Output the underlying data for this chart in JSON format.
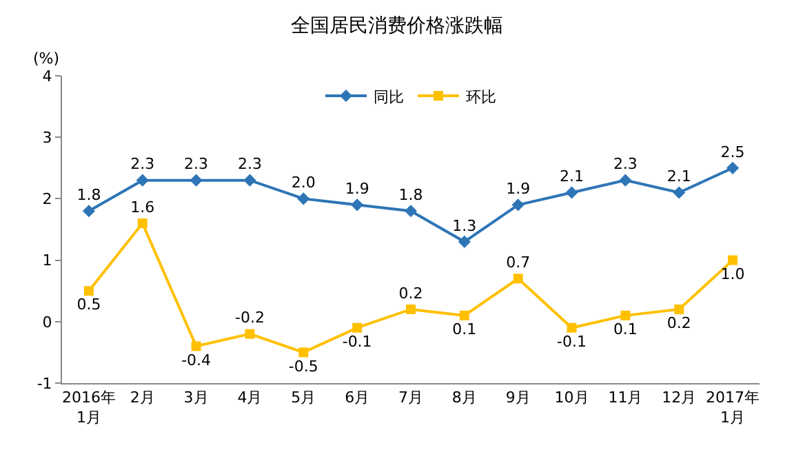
{
  "chart_data": {
    "type": "line",
    "title": "全国居民消费价格涨跌幅",
    "ylabel": "(%)",
    "categories": [
      "2016年\n1月",
      "2月",
      "3月",
      "4月",
      "5月",
      "6月",
      "7月",
      "8月",
      "9月",
      "10月",
      "11月",
      "12月",
      "2017年\n1月"
    ],
    "series": [
      {
        "name": "同比",
        "color": "#2e75b6",
        "marker": "diamond",
        "values": [
          1.8,
          2.3,
          2.3,
          2.3,
          2.0,
          1.9,
          1.8,
          1.3,
          1.9,
          2.1,
          2.3,
          2.1,
          2.5
        ],
        "value_labels": [
          "1.8",
          "2.3",
          "2.3",
          "2.3",
          "2.0",
          "1.9",
          "1.8",
          "1.3",
          "1.9",
          "2.1",
          "2.3",
          "2.1",
          "2.5"
        ]
      },
      {
        "name": "环比",
        "color": "#ffc000",
        "marker": "square",
        "values": [
          0.5,
          1.6,
          -0.4,
          -0.2,
          -0.5,
          -0.1,
          0.2,
          0.1,
          0.7,
          -0.1,
          0.1,
          0.2,
          1.0
        ],
        "value_labels": [
          "0.5",
          "1.6",
          "-0.4",
          "-0.2",
          "-0.5",
          "-0.1",
          "0.2",
          "0.1",
          "0.7",
          "-0.1",
          "0.1",
          "0.2",
          "1.0"
        ]
      }
    ],
    "ylim": [
      -1,
      4
    ],
    "yticks": [
      -1,
      0,
      1,
      2,
      3,
      4
    ],
    "grid": false,
    "legend": "top",
    "line_style": "solid"
  }
}
